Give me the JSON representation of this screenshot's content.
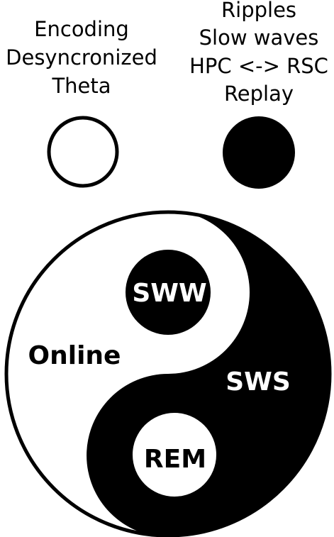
{
  "legend": {
    "left": {
      "lines": [
        "Encoding",
        "Desyncronized",
        "Theta"
      ],
      "marker": "open-circle"
    },
    "right": {
      "lines": [
        "Ripples",
        "Slow waves",
        "HPC <-> RSC",
        "Replay"
      ],
      "marker": "filled-circle"
    }
  },
  "yinyang": {
    "white_half_label": "Online",
    "black_half_label": "SWS",
    "black_dot_label": "SWW",
    "white_dot_label": "REM"
  },
  "colors": {
    "ink": "#000000",
    "paper": "#ffffff"
  }
}
